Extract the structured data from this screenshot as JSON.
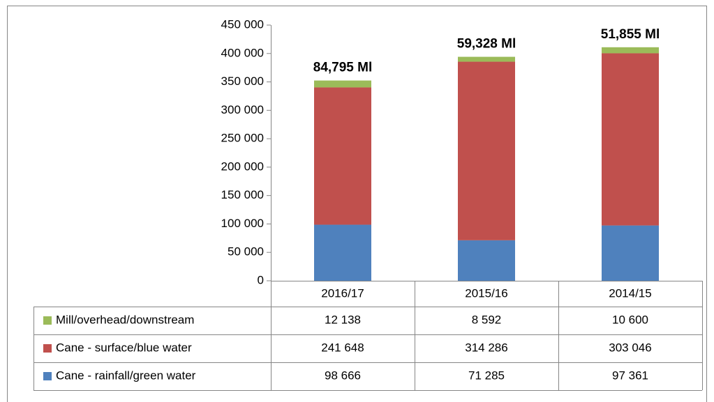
{
  "chart_data": {
    "type": "stacked_bar",
    "categories": [
      "2016/17",
      "2015/16",
      "2014/15"
    ],
    "series": [
      {
        "name": "Mill/overhead/downstream",
        "color": "#9bbb59",
        "values": [
          12138,
          8592,
          10600
        ],
        "value_labels": [
          "12 138",
          "8 592",
          "10 600"
        ]
      },
      {
        "name": "Cane - surface/blue water",
        "color": "#c0504d",
        "values": [
          241648,
          314286,
          303046
        ],
        "value_labels": [
          "241 648",
          "314 286",
          "303 046"
        ]
      },
      {
        "name": "Cane - rainfall/green water",
        "color": "#4f81bd",
        "values": [
          98666,
          71285,
          97361
        ],
        "value_labels": [
          "98 666",
          "71 285",
          "97 361"
        ]
      }
    ],
    "annotations": [
      "84,795 Ml",
      "59,328 Ml",
      "51,855 Ml"
    ],
    "ylim": [
      0,
      450000
    ],
    "yticks": [
      0,
      {
        "value": 50000,
        "label": "50 000"
      },
      {
        "value": 100000,
        "label": "100 000"
      },
      {
        "value": 150000,
        "label": "150 000"
      },
      {
        "value": 200000,
        "label": "200 000"
      },
      {
        "value": 250000,
        "label": "250 000"
      },
      {
        "value": 300000,
        "label": "300 000"
      },
      {
        "value": 350000,
        "label": "350 000"
      },
      {
        "value": 400000,
        "label": "400 000"
      },
      {
        "value": 450000,
        "label": "450 000"
      }
    ]
  }
}
